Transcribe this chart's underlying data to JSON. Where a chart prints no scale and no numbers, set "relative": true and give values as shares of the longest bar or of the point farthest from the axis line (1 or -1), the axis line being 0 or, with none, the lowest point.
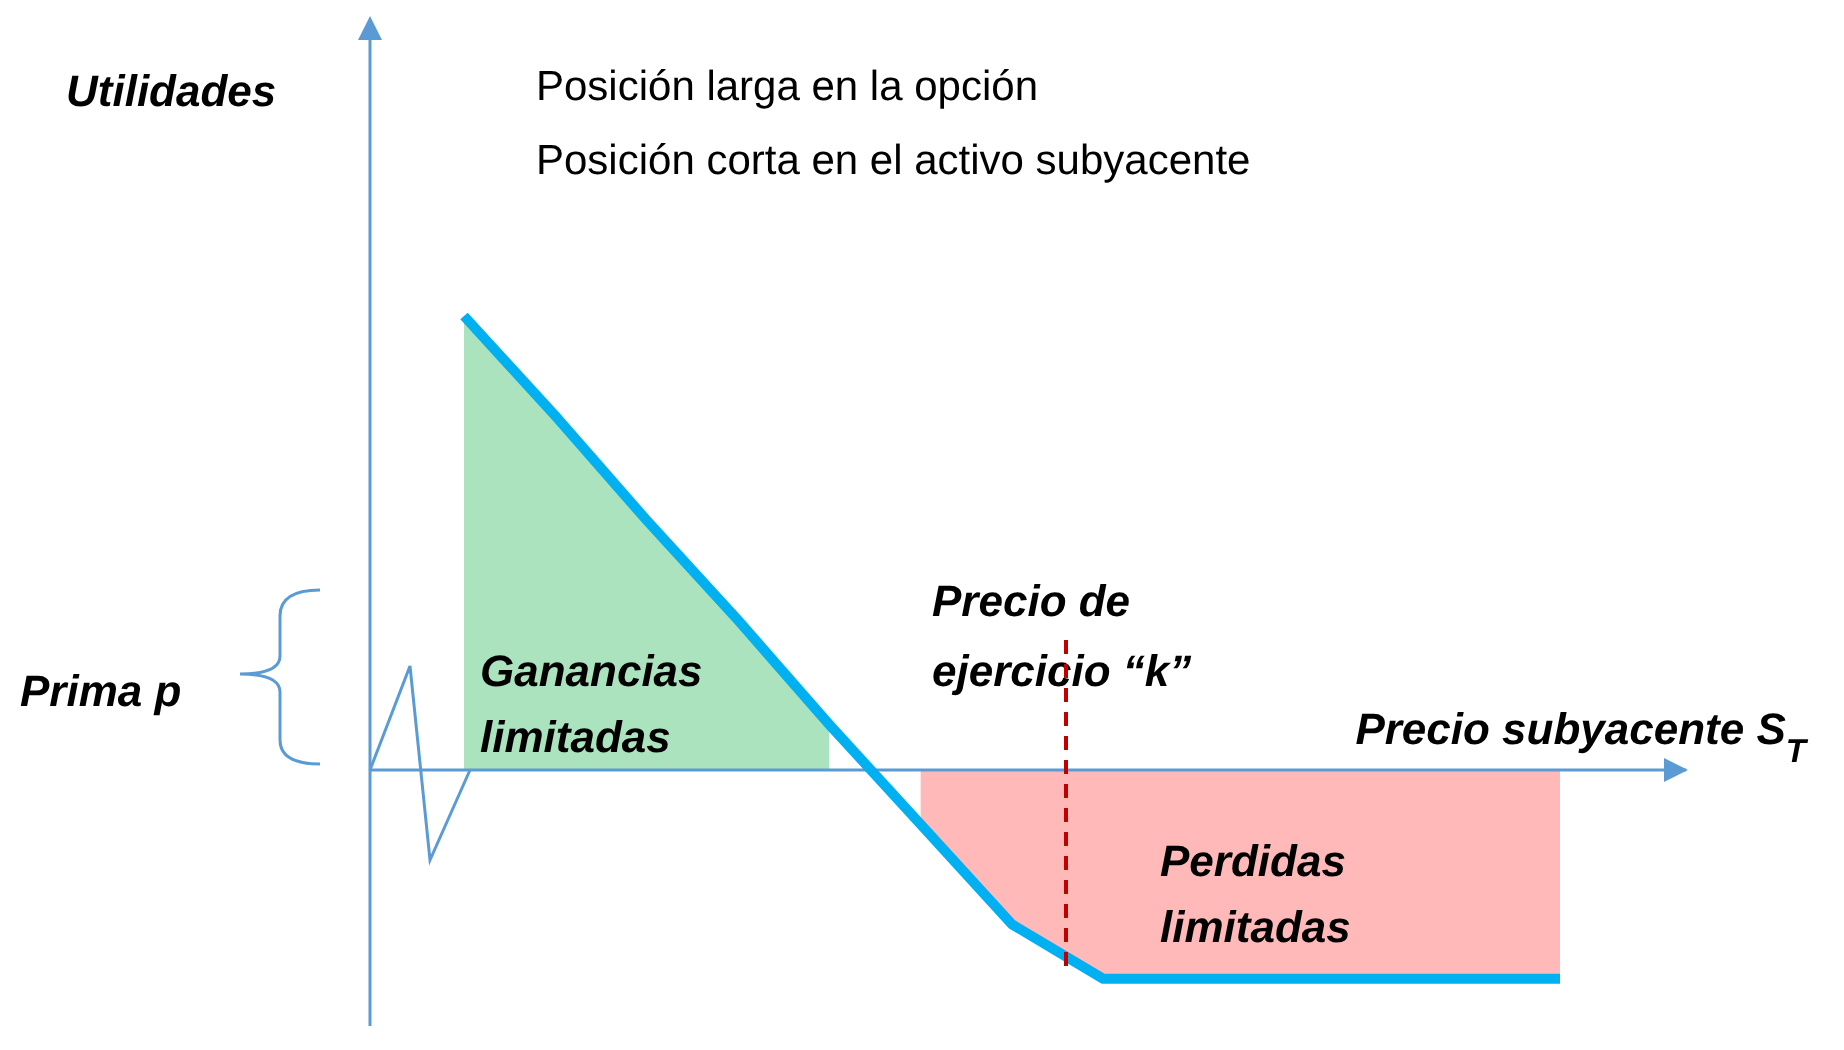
{
  "chart_data": {
    "type": "line",
    "relative": true,
    "title": "Posición larga en la opción",
    "subtitle": "Posición corta en el activo subyacente",
    "xlabel": "Precio subyacente S$_{T}$",
    "categories": [
      null,
      null,
      null,
      null,
      null,
      null,
      null,
      null,
      null,
      null,
      null,
      null,
      null
    ],
    "series": [
      {
        "type": "area",
        "name": "Ganancias limitadas",
        "color": "#66cc88",
        "values": [
          1,
          0.78,
          0.55,
          0.33,
          0.1,
          null,
          null,
          null,
          null,
          null,
          null,
          null,
          null
        ]
      },
      {
        "type": "area",
        "name": "Perdidas limitadas",
        "color": "#ff8080",
        "values": [
          null,
          null,
          null,
          null,
          null,
          -0.12,
          -0.34,
          -0.46,
          -0.46,
          -0.46,
          -0.46,
          -0.46,
          -0.46
        ]
      },
      {
        "color": "#00b0f0",
        "values": [
          1,
          0.78,
          0.55,
          0.33,
          0.1,
          -0.12,
          -0.34,
          -0.46,
          -0.46,
          -0.46,
          -0.46,
          -0.46,
          -0.46
        ]
      }
    ],
    "annotations": [
      "Utilidades",
      "Prima p",
      "Precio de ejercicio “k”"
    ],
    "ref_lines": [
      {
        "axis": "y",
        "value": 0,
        "color": "#5b9bd5"
      }
    ]
  }
}
